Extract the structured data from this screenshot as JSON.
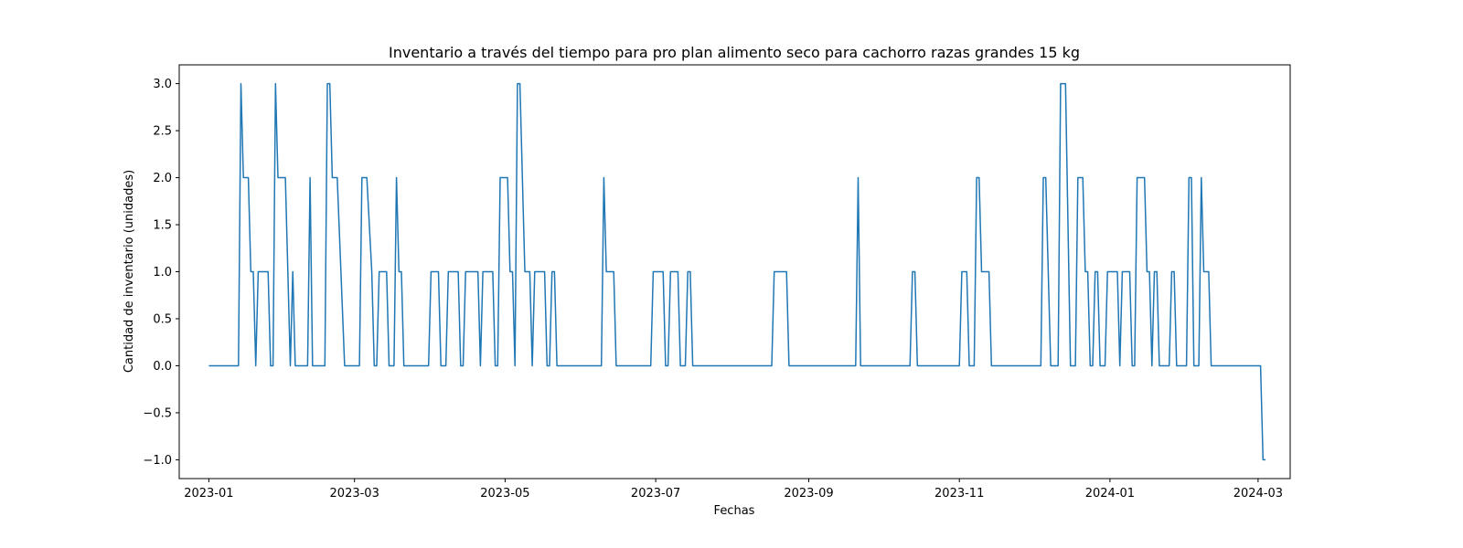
{
  "chart_data": {
    "type": "line",
    "title": "Inventario a través del tiempo para pro plan alimento seco para cachorro razas grandes 15 kg",
    "xlabel": "Fechas",
    "ylabel": "Cantidad de inventario (unidades)",
    "xlim": [
      "2022-12-20",
      "2024-03-14"
    ],
    "ylim": [
      -1.2,
      3.2
    ],
    "grid": false,
    "legend": "none",
    "color": "#1f77b4",
    "x_ticks": [
      "2023-01",
      "2023-03",
      "2023-05",
      "2023-07",
      "2023-09",
      "2023-11",
      "2024-01",
      "2024-03"
    ],
    "y_ticks": [
      "3.0",
      "2.5",
      "2.0",
      "1.5",
      "1.0",
      "0.5",
      "0.0",
      "−0.5",
      "−1.0"
    ],
    "series": [
      {
        "points": [
          [
            "2023-01-01",
            0
          ],
          [
            "2023-01-13",
            0
          ],
          [
            "2023-01-14",
            3
          ],
          [
            "2023-01-15",
            2
          ],
          [
            "2023-01-17",
            2
          ],
          [
            "2023-01-18",
            1
          ],
          [
            "2023-01-19",
            1
          ],
          [
            "2023-01-20",
            0
          ],
          [
            "2023-01-21",
            1
          ],
          [
            "2023-01-25",
            1
          ],
          [
            "2023-01-26",
            0
          ],
          [
            "2023-01-27",
            0
          ],
          [
            "2023-01-28",
            3
          ],
          [
            "2023-01-29",
            2
          ],
          [
            "2023-02-01",
            2
          ],
          [
            "2023-02-02",
            1
          ],
          [
            "2023-02-03",
            0
          ],
          [
            "2023-02-04",
            1
          ],
          [
            "2023-02-05",
            0
          ],
          [
            "2023-02-10",
            0
          ],
          [
            "2023-02-11",
            2
          ],
          [
            "2023-02-12",
            0
          ],
          [
            "2023-02-17",
            0
          ],
          [
            "2023-02-18",
            3
          ],
          [
            "2023-02-19",
            3
          ],
          [
            "2023-02-20",
            2
          ],
          [
            "2023-02-22",
            2
          ],
          [
            "2023-02-25",
            0
          ],
          [
            "2023-03-03",
            0
          ],
          [
            "2023-03-04",
            2
          ],
          [
            "2023-03-06",
            2
          ],
          [
            "2023-03-08",
            1
          ],
          [
            "2023-03-09",
            0
          ],
          [
            "2023-03-10",
            0
          ],
          [
            "2023-03-11",
            1
          ],
          [
            "2023-03-14",
            1
          ],
          [
            "2023-03-15",
            0
          ],
          [
            "2023-03-17",
            0
          ],
          [
            "2023-03-18",
            2
          ],
          [
            "2023-03-19",
            1
          ],
          [
            "2023-03-20",
            1
          ],
          [
            "2023-03-21",
            0
          ],
          [
            "2023-03-31",
            0
          ],
          [
            "2023-04-01",
            1
          ],
          [
            "2023-04-04",
            1
          ],
          [
            "2023-04-05",
            0
          ],
          [
            "2023-04-07",
            0
          ],
          [
            "2023-04-08",
            1
          ],
          [
            "2023-04-12",
            1
          ],
          [
            "2023-04-13",
            0
          ],
          [
            "2023-04-14",
            0
          ],
          [
            "2023-04-15",
            1
          ],
          [
            "2023-04-20",
            1
          ],
          [
            "2023-04-21",
            0
          ],
          [
            "2023-04-22",
            1
          ],
          [
            "2023-04-26",
            1
          ],
          [
            "2023-04-27",
            0
          ],
          [
            "2023-04-28",
            0
          ],
          [
            "2023-04-29",
            2
          ],
          [
            "2023-05-02",
            2
          ],
          [
            "2023-05-03",
            1
          ],
          [
            "2023-05-04",
            1
          ],
          [
            "2023-05-05",
            0
          ],
          [
            "2023-05-06",
            3
          ],
          [
            "2023-05-07",
            3
          ],
          [
            "2023-05-09",
            1
          ],
          [
            "2023-05-11",
            1
          ],
          [
            "2023-05-12",
            0
          ],
          [
            "2023-05-13",
            1
          ],
          [
            "2023-05-17",
            1
          ],
          [
            "2023-05-18",
            0
          ],
          [
            "2023-05-19",
            0
          ],
          [
            "2023-05-20",
            1
          ],
          [
            "2023-05-21",
            1
          ],
          [
            "2023-05-22",
            0
          ],
          [
            "2023-06-09",
            0
          ],
          [
            "2023-06-10",
            2
          ],
          [
            "2023-06-11",
            1
          ],
          [
            "2023-06-14",
            1
          ],
          [
            "2023-06-15",
            0
          ],
          [
            "2023-06-29",
            0
          ],
          [
            "2023-06-30",
            1
          ],
          [
            "2023-07-04",
            1
          ],
          [
            "2023-07-05",
            0
          ],
          [
            "2023-07-06",
            0
          ],
          [
            "2023-07-07",
            1
          ],
          [
            "2023-07-10",
            1
          ],
          [
            "2023-07-11",
            0
          ],
          [
            "2023-07-13",
            0
          ],
          [
            "2023-07-14",
            1
          ],
          [
            "2023-07-15",
            1
          ],
          [
            "2023-07-16",
            0
          ],
          [
            "2023-08-17",
            0
          ],
          [
            "2023-08-18",
            1
          ],
          [
            "2023-08-23",
            1
          ],
          [
            "2023-08-24",
            0
          ],
          [
            "2023-09-20",
            0
          ],
          [
            "2023-09-21",
            2
          ],
          [
            "2023-09-22",
            0
          ],
          [
            "2023-10-12",
            0
          ],
          [
            "2023-10-13",
            1
          ],
          [
            "2023-10-14",
            1
          ],
          [
            "2023-10-15",
            0
          ],
          [
            "2023-11-01",
            0
          ],
          [
            "2023-11-02",
            1
          ],
          [
            "2023-11-04",
            1
          ],
          [
            "2023-11-05",
            0
          ],
          [
            "2023-11-07",
            0
          ],
          [
            "2023-11-08",
            2
          ],
          [
            "2023-11-09",
            2
          ],
          [
            "2023-11-10",
            1
          ],
          [
            "2023-11-13",
            1
          ],
          [
            "2023-11-14",
            0
          ],
          [
            "2023-12-04",
            0
          ],
          [
            "2023-12-05",
            2
          ],
          [
            "2023-12-06",
            2
          ],
          [
            "2023-12-08",
            0
          ],
          [
            "2023-12-11",
            0
          ],
          [
            "2023-12-12",
            3
          ],
          [
            "2023-12-14",
            3
          ],
          [
            "2023-12-16",
            0
          ],
          [
            "2023-12-18",
            0
          ],
          [
            "2023-12-19",
            2
          ],
          [
            "2023-12-21",
            2
          ],
          [
            "2023-12-22",
            1
          ],
          [
            "2023-12-23",
            1
          ],
          [
            "2023-12-24",
            0
          ],
          [
            "2023-12-25",
            0
          ],
          [
            "2023-12-26",
            1
          ],
          [
            "2023-12-27",
            1
          ],
          [
            "2023-12-28",
            0
          ],
          [
            "2023-12-30",
            0
          ],
          [
            "2023-12-31",
            1
          ],
          [
            "2024-01-04",
            1
          ],
          [
            "2024-01-05",
            0
          ],
          [
            "2024-01-06",
            1
          ],
          [
            "2024-01-09",
            1
          ],
          [
            "2024-01-10",
            0
          ],
          [
            "2024-01-11",
            0
          ],
          [
            "2024-01-12",
            2
          ],
          [
            "2024-01-15",
            2
          ],
          [
            "2024-01-16",
            1
          ],
          [
            "2024-01-17",
            1
          ],
          [
            "2024-01-18",
            0
          ],
          [
            "2024-01-19",
            1
          ],
          [
            "2024-01-20",
            1
          ],
          [
            "2024-01-21",
            0
          ],
          [
            "2024-01-25",
            0
          ],
          [
            "2024-01-26",
            1
          ],
          [
            "2024-01-27",
            1
          ],
          [
            "2024-01-28",
            0
          ],
          [
            "2024-02-01",
            0
          ],
          [
            "2024-02-02",
            2
          ],
          [
            "2024-02-03",
            2
          ],
          [
            "2024-02-04",
            0
          ],
          [
            "2024-02-06",
            0
          ],
          [
            "2024-02-07",
            2
          ],
          [
            "2024-02-08",
            1
          ],
          [
            "2024-02-10",
            1
          ],
          [
            "2024-02-11",
            0
          ],
          [
            "2024-03-02",
            0
          ],
          [
            "2024-03-03",
            -1
          ],
          [
            "2024-03-04",
            -1
          ]
        ]
      }
    ]
  }
}
